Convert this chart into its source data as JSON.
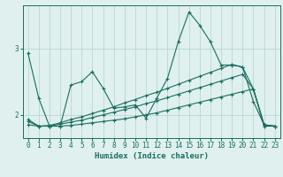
{
  "xlabel": "Humidex (Indice chaleur)",
  "bg_color": "#dff0ee",
  "grid_color": "#b8d8d4",
  "line_color": "#1a6e60",
  "xlim": [
    -0.5,
    23.5
  ],
  "ylim": [
    1.65,
    3.65
  ],
  "yticks": [
    2,
    3
  ],
  "xticks": [
    0,
    1,
    2,
    3,
    4,
    5,
    6,
    7,
    8,
    9,
    10,
    11,
    12,
    13,
    14,
    15,
    16,
    17,
    18,
    19,
    20,
    21,
    22,
    23
  ],
  "series1_x": [
    0,
    1,
    2,
    3,
    4,
    5,
    6,
    7,
    8,
    9,
    10,
    11,
    12,
    13,
    14,
    15,
    16,
    17,
    18,
    19,
    20,
    21,
    22,
    23
  ],
  "series1_y": [
    2.93,
    2.25,
    1.83,
    1.83,
    2.45,
    2.5,
    2.65,
    2.4,
    2.1,
    2.12,
    2.15,
    1.95,
    2.25,
    2.55,
    3.1,
    3.55,
    3.35,
    3.1,
    2.75,
    2.75,
    2.72,
    2.2,
    1.85,
    1.83
  ],
  "series2_x": [
    0,
    1,
    2,
    3,
    4,
    5,
    6,
    7,
    8,
    9,
    10,
    11,
    12,
    13,
    14,
    15,
    16,
    17,
    18,
    19,
    20,
    21,
    22,
    23
  ],
  "series2_y": [
    1.85,
    1.83,
    1.83,
    1.83,
    1.84,
    1.86,
    1.88,
    1.9,
    1.92,
    1.94,
    1.97,
    2.0,
    2.03,
    2.07,
    2.11,
    2.15,
    2.19,
    2.23,
    2.27,
    2.31,
    2.35,
    2.39,
    1.83,
    1.83
  ],
  "series3_x": [
    0,
    1,
    2,
    3,
    4,
    5,
    6,
    7,
    8,
    9,
    10,
    11,
    12,
    13,
    14,
    15,
    16,
    17,
    18,
    19,
    20,
    21,
    22,
    23
  ],
  "series3_y": [
    1.9,
    1.83,
    1.83,
    1.86,
    1.89,
    1.92,
    1.96,
    2.0,
    2.04,
    2.08,
    2.12,
    2.17,
    2.21,
    2.26,
    2.31,
    2.36,
    2.41,
    2.46,
    2.51,
    2.56,
    2.61,
    2.39,
    1.85,
    1.83
  ],
  "series4_x": [
    0,
    1,
    2,
    3,
    4,
    5,
    6,
    7,
    8,
    9,
    10,
    11,
    12,
    13,
    14,
    15,
    16,
    17,
    18,
    19,
    20,
    21,
    22,
    23
  ],
  "series4_y": [
    1.93,
    1.83,
    1.84,
    1.88,
    1.93,
    1.97,
    2.02,
    2.07,
    2.12,
    2.18,
    2.23,
    2.29,
    2.34,
    2.4,
    2.46,
    2.52,
    2.58,
    2.64,
    2.7,
    2.76,
    2.72,
    2.39,
    1.85,
    1.83
  ]
}
